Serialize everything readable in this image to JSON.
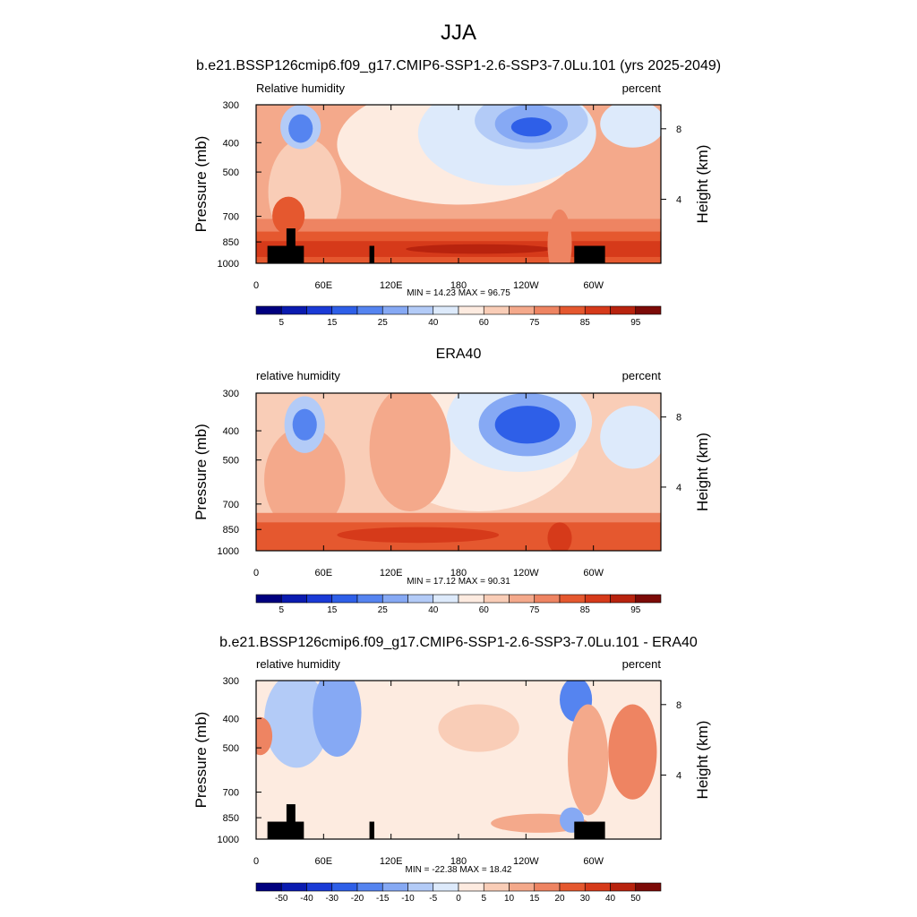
{
  "figure": {
    "title": "JJA"
  },
  "colorbars": {
    "absolute": {
      "colors": [
        "#00007f",
        "#0a1bb0",
        "#1a3ad6",
        "#2e5fe8",
        "#5584f0",
        "#86a9f4",
        "#b3cbf7",
        "#ddeafb",
        "#fdebe0",
        "#f9cdb7",
        "#f4a98b",
        "#ee8462",
        "#e5582f",
        "#d63a1a",
        "#b8230e",
        "#7c0a07"
      ],
      "labels": [
        "5",
        "15",
        "25",
        "40",
        "60",
        "75",
        "85",
        "95"
      ]
    },
    "difference": {
      "colors": [
        "#00007f",
        "#0a1bb0",
        "#1a3ad6",
        "#2e5fe8",
        "#5584f0",
        "#86a9f4",
        "#b3cbf7",
        "#ddeafb",
        "#fdebe0",
        "#f9cdb7",
        "#f4a98b",
        "#ee8462",
        "#e5582f",
        "#d63a1a",
        "#b8230e",
        "#7c0a07"
      ],
      "labels": [
        "-50",
        "-40",
        "-30",
        "-20",
        "-15",
        "-10",
        "-5",
        "0",
        "5",
        "10",
        "15",
        "20",
        "30",
        "40",
        "50"
      ]
    }
  },
  "chart_data": [
    {
      "type": "heatmap",
      "title": "b.e21.BSSP126cmip6.f09_g17.CMIP6-SSP1-2.6-SSP3-7.0Lu.101 (yrs 2025-2049)",
      "left_label": "Relative humidity",
      "right_label": "percent",
      "ylabel": "Pressure (mb)",
      "ylabel_right": "Height (km)",
      "x_ticks": [
        "0",
        "60E",
        "120E",
        "180",
        "120W",
        "60W"
      ],
      "y_ticks": [
        "300",
        "400",
        "500",
        "700",
        "850",
        "1000"
      ],
      "y_ticks_right": [
        "8",
        "4"
      ],
      "stats": "MIN =  14.23  MAX =  96.75",
      "colorbar": "absolute",
      "xlim": [
        0,
        360
      ],
      "ylim": [
        1000,
        300
      ],
      "min": 14.23,
      "max": 96.75
    },
    {
      "type": "heatmap",
      "title": "ERA40",
      "left_label": "relative humidity",
      "right_label": "percent",
      "ylabel": "Pressure (mb)",
      "ylabel_right": "Height (km)",
      "x_ticks": [
        "0",
        "60E",
        "120E",
        "180",
        "120W",
        "60W"
      ],
      "y_ticks": [
        "300",
        "400",
        "500",
        "700",
        "850",
        "1000"
      ],
      "y_ticks_right": [
        "8",
        "4"
      ],
      "stats": "MIN =  17.12  MAX =  90.31",
      "colorbar": "absolute",
      "xlim": [
        0,
        360
      ],
      "ylim": [
        1000,
        300
      ],
      "min": 17.12,
      "max": 90.31
    },
    {
      "type": "heatmap",
      "title": "b.e21.BSSP126cmip6.f09_g17.CMIP6-SSP1-2.6-SSP3-7.0Lu.101 - ERA40",
      "left_label": "relative humidity",
      "right_label": "percent",
      "ylabel": "Pressure (mb)",
      "ylabel_right": "Height (km)",
      "x_ticks": [
        "0",
        "60E",
        "120E",
        "180",
        "120W",
        "60W"
      ],
      "y_ticks": [
        "300",
        "400",
        "500",
        "700",
        "850",
        "1000"
      ],
      "y_ticks_right": [
        "8",
        "4"
      ],
      "stats": "MIN = -22.38  MAX =  18.42",
      "colorbar": "difference",
      "xlim": [
        0,
        360
      ],
      "ylim": [
        1000,
        300
      ],
      "min": -22.38,
      "max": 18.42
    }
  ]
}
